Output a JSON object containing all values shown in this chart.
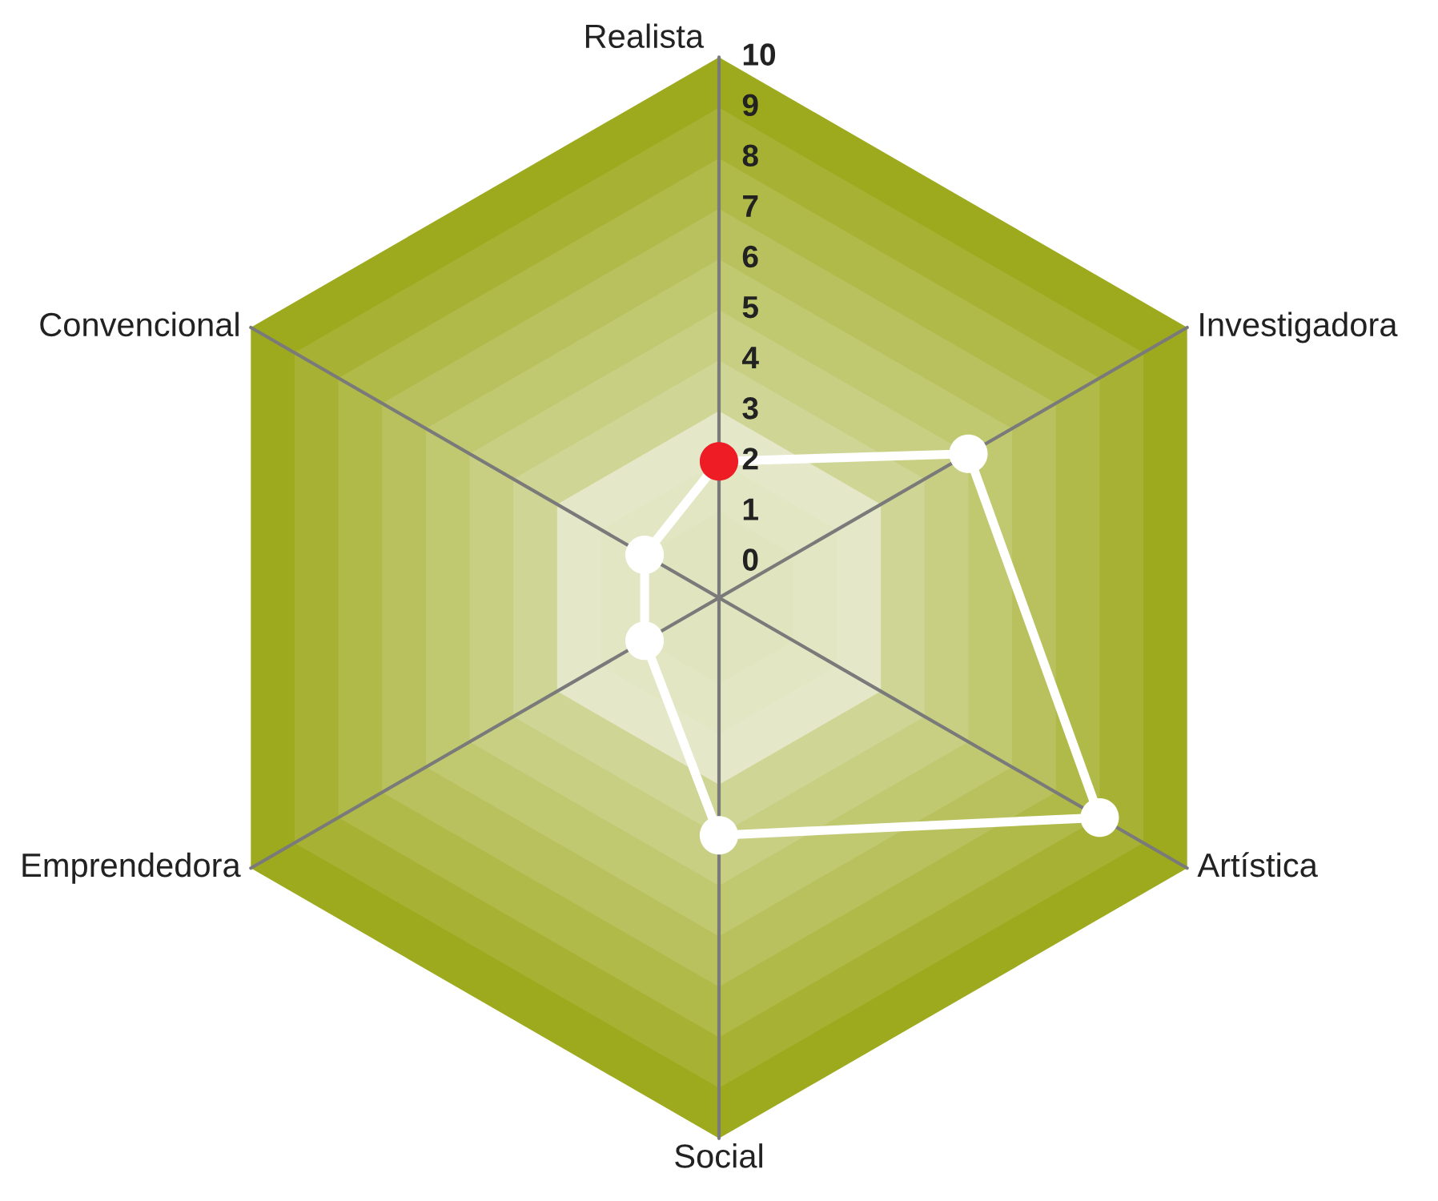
{
  "chart_data": {
    "type": "radar",
    "categories": [
      "Realista",
      "Investigadora",
      "Artística",
      "Social",
      "Emprendedora",
      "Convencional"
    ],
    "series": [
      {
        "color": "#ffffff",
        "values": [
          2,
          5,
          8,
          4,
          1,
          1
        ]
      }
    ],
    "ylim": [
      -0.7,
      10
    ],
    "yticks": [
      0,
      1,
      2,
      3,
      4,
      5,
      6,
      7,
      8,
      9,
      10
    ],
    "marker": "circle",
    "line_style": "solid",
    "grid": true,
    "legend": false
  }
}
